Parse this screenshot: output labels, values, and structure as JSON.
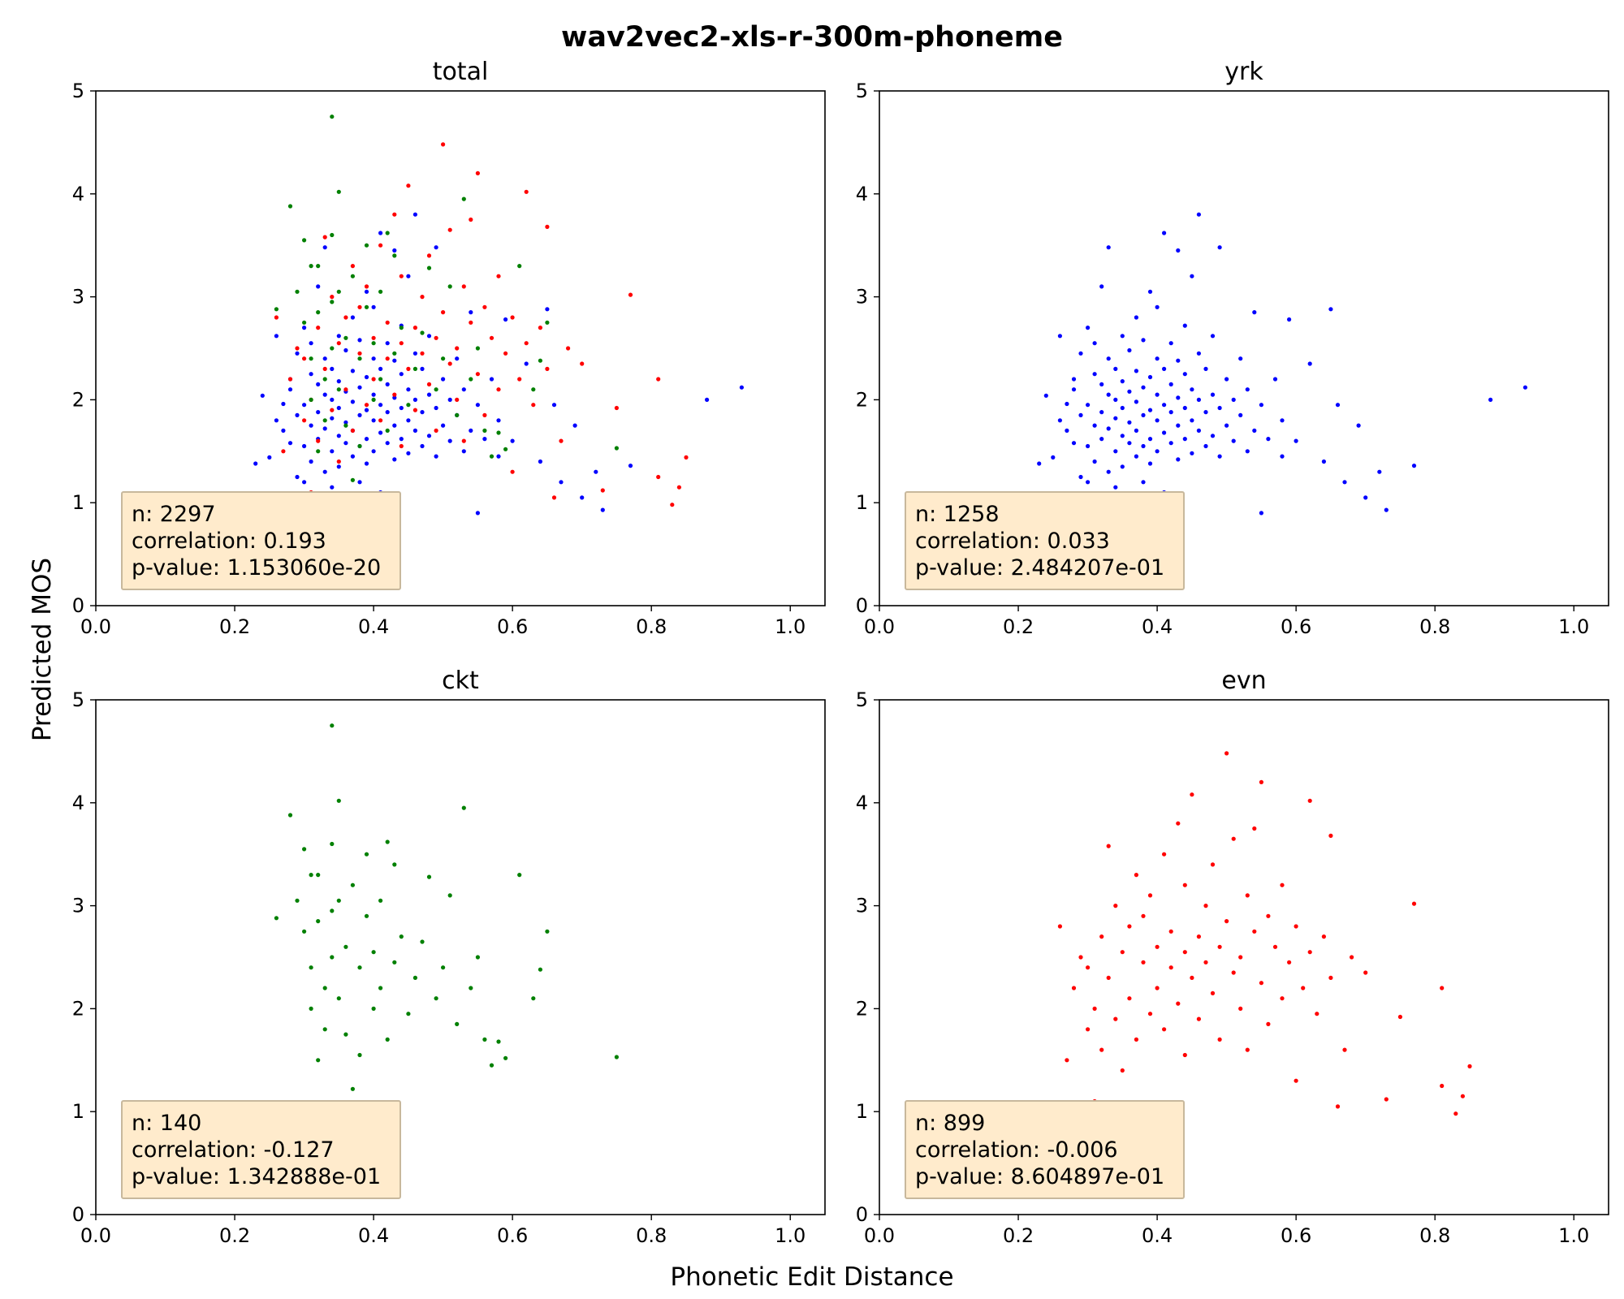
{
  "figure": {
    "title": "wav2vec2-xls-r-300m-phoneme",
    "xlabel": "Phonetic Edit Distance",
    "ylabel": "Predicted MOS"
  },
  "colors": {
    "yrk": "#0000ff",
    "ckt": "#008000",
    "evn": "#ff0000",
    "stat_box": "#ffebcc"
  },
  "chart_data": [
    {
      "type": "scatter",
      "title": "total",
      "xlim": [
        0.0,
        1.05
      ],
      "ylim": [
        0,
        5
      ],
      "xticks": [
        "0.0",
        "0.2",
        "0.4",
        "0.6",
        "0.8",
        "1.0"
      ],
      "yticks": [
        "0",
        "1",
        "2",
        "3",
        "4",
        "5"
      ],
      "stats": {
        "n": "n: 2297",
        "correlation": "correlation: 0.193",
        "pvalue": "p-value: 1.153060e-20"
      },
      "series_from": [
        "yrk",
        "evn",
        "ckt"
      ]
    },
    {
      "type": "scatter",
      "title": "yrk",
      "xlim": [
        0.0,
        1.05
      ],
      "ylim": [
        0,
        5
      ],
      "xticks": [
        "0.0",
        "0.2",
        "0.4",
        "0.6",
        "0.8",
        "1.0"
      ],
      "yticks": [
        "0",
        "1",
        "2",
        "3",
        "4",
        "5"
      ],
      "stats": {
        "n": "n: 1258",
        "correlation": "correlation: 0.033",
        "pvalue": "p-value: 2.484207e-01"
      },
      "series_from": [
        "yrk"
      ]
    },
    {
      "type": "scatter",
      "title": "ckt",
      "xlim": [
        0.0,
        1.05
      ],
      "ylim": [
        0,
        5
      ],
      "xticks": [
        "0.0",
        "0.2",
        "0.4",
        "0.6",
        "0.8",
        "1.0"
      ],
      "yticks": [
        "0",
        "1",
        "2",
        "3",
        "4",
        "5"
      ],
      "stats": {
        "n": "n: 140",
        "correlation": "correlation: -0.127",
        "pvalue": "p-value: 1.342888e-01"
      },
      "series_from": [
        "ckt"
      ]
    },
    {
      "type": "scatter",
      "title": "evn",
      "xlim": [
        0.0,
        1.05
      ],
      "ylim": [
        0,
        5
      ],
      "xticks": [
        "0.0",
        "0.2",
        "0.4",
        "0.6",
        "0.8",
        "1.0"
      ],
      "yticks": [
        "0",
        "1",
        "2",
        "3",
        "4",
        "5"
      ],
      "stats": {
        "n": "n: 899",
        "correlation": "correlation: -0.006",
        "pvalue": "p-value: 8.604897e-01"
      },
      "series_from": [
        "evn"
      ]
    }
  ],
  "series": {
    "yrk": [
      [
        0.23,
        1.38
      ],
      [
        0.24,
        2.04
      ],
      [
        0.25,
        1.44
      ],
      [
        0.26,
        1.8
      ],
      [
        0.26,
        2.62
      ],
      [
        0.27,
        1.96
      ],
      [
        0.27,
        1.7
      ],
      [
        0.28,
        2.2
      ],
      [
        0.28,
        1.58
      ],
      [
        0.28,
        2.1
      ],
      [
        0.29,
        1.25
      ],
      [
        0.29,
        1.85
      ],
      [
        0.29,
        2.45
      ],
      [
        0.3,
        1.55
      ],
      [
        0.3,
        1.95
      ],
      [
        0.3,
        2.7
      ],
      [
        0.3,
        1.2
      ],
      [
        0.31,
        1.75
      ],
      [
        0.31,
        2.25
      ],
      [
        0.31,
        1.4
      ],
      [
        0.31,
        2.55
      ],
      [
        0.32,
        1.62
      ],
      [
        0.32,
        1.88
      ],
      [
        0.32,
        2.15
      ],
      [
        0.32,
        3.1
      ],
      [
        0.33,
        1.3
      ],
      [
        0.33,
        1.72
      ],
      [
        0.33,
        2.05
      ],
      [
        0.33,
        2.4
      ],
      [
        0.33,
        3.48
      ],
      [
        0.34,
        1.5
      ],
      [
        0.34,
        1.82
      ],
      [
        0.34,
        2.0
      ],
      [
        0.34,
        2.3
      ],
      [
        0.34,
        1.15
      ],
      [
        0.35,
        1.65
      ],
      [
        0.35,
        1.92
      ],
      [
        0.35,
        2.18
      ],
      [
        0.35,
        2.62
      ],
      [
        0.35,
        1.35
      ],
      [
        0.36,
        1.58
      ],
      [
        0.36,
        1.78
      ],
      [
        0.36,
        2.08
      ],
      [
        0.36,
        2.48
      ],
      [
        0.36,
        0.95
      ],
      [
        0.37,
        1.45
      ],
      [
        0.37,
        1.7
      ],
      [
        0.37,
        1.98
      ],
      [
        0.37,
        2.28
      ],
      [
        0.37,
        2.8
      ],
      [
        0.38,
        1.55
      ],
      [
        0.38,
        1.85
      ],
      [
        0.38,
        2.12
      ],
      [
        0.38,
        2.58
      ],
      [
        0.38,
        1.2
      ],
      [
        0.39,
        1.62
      ],
      [
        0.39,
        1.9
      ],
      [
        0.39,
        2.22
      ],
      [
        0.39,
        3.05
      ],
      [
        0.39,
        1.38
      ],
      [
        0.4,
        1.5
      ],
      [
        0.4,
        1.8
      ],
      [
        0.4,
        2.05
      ],
      [
        0.4,
        2.4
      ],
      [
        0.4,
        2.9
      ],
      [
        0.41,
        1.68
      ],
      [
        0.41,
        1.95
      ],
      [
        0.41,
        2.3
      ],
      [
        0.41,
        1.1
      ],
      [
        0.41,
        3.62
      ],
      [
        0.42,
        1.58
      ],
      [
        0.42,
        1.88
      ],
      [
        0.42,
        2.15
      ],
      [
        0.42,
        2.55
      ],
      [
        0.43,
        1.42
      ],
      [
        0.43,
        1.75
      ],
      [
        0.43,
        2.02
      ],
      [
        0.43,
        2.38
      ],
      [
        0.43,
        3.45
      ],
      [
        0.44,
        1.62
      ],
      [
        0.44,
        1.92
      ],
      [
        0.44,
        2.25
      ],
      [
        0.44,
        2.72
      ],
      [
        0.45,
        1.48
      ],
      [
        0.45,
        1.8
      ],
      [
        0.45,
        2.1
      ],
      [
        0.45,
        3.2
      ],
      [
        0.46,
        1.7
      ],
      [
        0.46,
        2.0
      ],
      [
        0.46,
        2.45
      ],
      [
        0.46,
        3.8
      ],
      [
        0.47,
        1.55
      ],
      [
        0.47,
        1.88
      ],
      [
        0.47,
        2.3
      ],
      [
        0.48,
        1.65
      ],
      [
        0.48,
        2.05
      ],
      [
        0.48,
        2.62
      ],
      [
        0.49,
        1.45
      ],
      [
        0.49,
        1.92
      ],
      [
        0.49,
        3.48
      ],
      [
        0.5,
        1.75
      ],
      [
        0.5,
        2.2
      ],
      [
        0.51,
        1.6
      ],
      [
        0.51,
        2.0
      ],
      [
        0.52,
        1.85
      ],
      [
        0.52,
        2.4
      ],
      [
        0.53,
        1.5
      ],
      [
        0.53,
        2.1
      ],
      [
        0.54,
        1.7
      ],
      [
        0.54,
        2.85
      ],
      [
        0.55,
        0.9
      ],
      [
        0.55,
        1.95
      ],
      [
        0.56,
        1.62
      ],
      [
        0.57,
        2.2
      ],
      [
        0.58,
        1.45
      ],
      [
        0.58,
        1.8
      ],
      [
        0.59,
        2.78
      ],
      [
        0.6,
        1.6
      ],
      [
        0.62,
        2.35
      ],
      [
        0.64,
        1.4
      ],
      [
        0.65,
        2.88
      ],
      [
        0.66,
        1.95
      ],
      [
        0.67,
        1.2
      ],
      [
        0.69,
        1.75
      ],
      [
        0.7,
        1.05
      ],
      [
        0.72,
        1.3
      ],
      [
        0.73,
        0.93
      ],
      [
        0.77,
        1.36
      ],
      [
        0.88,
        2.0
      ],
      [
        0.93,
        2.12
      ]
    ],
    "ckt": [
      [
        0.26,
        2.88
      ],
      [
        0.28,
        3.88
      ],
      [
        0.29,
        3.05
      ],
      [
        0.3,
        3.55
      ],
      [
        0.3,
        2.75
      ],
      [
        0.3,
        0.9
      ],
      [
        0.31,
        3.3
      ],
      [
        0.31,
        2.4
      ],
      [
        0.31,
        2.0
      ],
      [
        0.32,
        1.5
      ],
      [
        0.32,
        2.85
      ],
      [
        0.32,
        3.3
      ],
      [
        0.33,
        2.2
      ],
      [
        0.33,
        1.8
      ],
      [
        0.34,
        4.75
      ],
      [
        0.34,
        3.6
      ],
      [
        0.34,
        2.5
      ],
      [
        0.34,
        2.95
      ],
      [
        0.35,
        3.05
      ],
      [
        0.35,
        2.1
      ],
      [
        0.35,
        4.02
      ],
      [
        0.36,
        2.6
      ],
      [
        0.36,
        1.75
      ],
      [
        0.37,
        1.22
      ],
      [
        0.37,
        3.2
      ],
      [
        0.38,
        2.4
      ],
      [
        0.38,
        1.55
      ],
      [
        0.39,
        2.9
      ],
      [
        0.39,
        3.5
      ],
      [
        0.4,
        2.55
      ],
      [
        0.4,
        2.0
      ],
      [
        0.41,
        3.05
      ],
      [
        0.41,
        2.2
      ],
      [
        0.42,
        3.62
      ],
      [
        0.42,
        1.7
      ],
      [
        0.43,
        2.45
      ],
      [
        0.43,
        3.4
      ],
      [
        0.44,
        2.7
      ],
      [
        0.45,
        1.95
      ],
      [
        0.46,
        2.3
      ],
      [
        0.47,
        2.65
      ],
      [
        0.48,
        3.28
      ],
      [
        0.49,
        2.1
      ],
      [
        0.5,
        2.4
      ],
      [
        0.51,
        3.1
      ],
      [
        0.52,
        1.85
      ],
      [
        0.53,
        3.95
      ],
      [
        0.54,
        2.2
      ],
      [
        0.55,
        2.5
      ],
      [
        0.56,
        1.7
      ],
      [
        0.57,
        1.45
      ],
      [
        0.58,
        1.68
      ],
      [
        0.59,
        1.52
      ],
      [
        0.61,
        3.3
      ],
      [
        0.63,
        2.1
      ],
      [
        0.64,
        2.38
      ],
      [
        0.65,
        2.75
      ],
      [
        0.75,
        1.53
      ]
    ],
    "evn": [
      [
        0.26,
        2.8
      ],
      [
        0.27,
        1.5
      ],
      [
        0.28,
        2.2
      ],
      [
        0.29,
        2.5
      ],
      [
        0.3,
        1.8
      ],
      [
        0.3,
        2.4
      ],
      [
        0.31,
        1.1
      ],
      [
        0.31,
        2.0
      ],
      [
        0.32,
        2.7
      ],
      [
        0.32,
        1.6
      ],
      [
        0.33,
        3.58
      ],
      [
        0.33,
        2.3
      ],
      [
        0.34,
        3.0
      ],
      [
        0.34,
        1.9
      ],
      [
        0.35,
        2.55
      ],
      [
        0.35,
        1.4
      ],
      [
        0.36,
        2.8
      ],
      [
        0.36,
        2.1
      ],
      [
        0.37,
        3.3
      ],
      [
        0.37,
        1.7
      ],
      [
        0.38,
        2.45
      ],
      [
        0.38,
        2.9
      ],
      [
        0.39,
        1.95
      ],
      [
        0.39,
        3.1
      ],
      [
        0.39,
        0.98
      ],
      [
        0.4,
        2.6
      ],
      [
        0.4,
        2.2
      ],
      [
        0.41,
        3.5
      ],
      [
        0.41,
        1.8
      ],
      [
        0.42,
        2.4
      ],
      [
        0.42,
        2.75
      ],
      [
        0.43,
        3.8
      ],
      [
        0.43,
        2.05
      ],
      [
        0.44,
        2.55
      ],
      [
        0.44,
        3.2
      ],
      [
        0.44,
        1.55
      ],
      [
        0.45,
        4.08
      ],
      [
        0.45,
        2.3
      ],
      [
        0.46,
        2.7
      ],
      [
        0.46,
        1.9
      ],
      [
        0.47,
        3.0
      ],
      [
        0.47,
        2.45
      ],
      [
        0.48,
        3.4
      ],
      [
        0.48,
        2.15
      ],
      [
        0.49,
        2.6
      ],
      [
        0.49,
        1.7
      ],
      [
        0.5,
        4.48
      ],
      [
        0.5,
        2.85
      ],
      [
        0.51,
        2.35
      ],
      [
        0.51,
        3.65
      ],
      [
        0.52,
        2.0
      ],
      [
        0.52,
        2.5
      ],
      [
        0.53,
        3.1
      ],
      [
        0.53,
        1.6
      ],
      [
        0.54,
        2.75
      ],
      [
        0.54,
        3.75
      ],
      [
        0.55,
        4.2
      ],
      [
        0.55,
        2.25
      ],
      [
        0.56,
        2.9
      ],
      [
        0.56,
        1.85
      ],
      [
        0.57,
        2.6
      ],
      [
        0.58,
        3.2
      ],
      [
        0.58,
        2.1
      ],
      [
        0.59,
        2.45
      ],
      [
        0.6,
        2.8
      ],
      [
        0.6,
        1.3
      ],
      [
        0.61,
        2.2
      ],
      [
        0.62,
        4.02
      ],
      [
        0.62,
        2.55
      ],
      [
        0.63,
        1.95
      ],
      [
        0.64,
        2.7
      ],
      [
        0.65,
        2.3
      ],
      [
        0.65,
        3.68
      ],
      [
        0.66,
        1.05
      ],
      [
        0.67,
        1.6
      ],
      [
        0.68,
        2.5
      ],
      [
        0.7,
        2.35
      ],
      [
        0.73,
        1.12
      ],
      [
        0.75,
        1.92
      ],
      [
        0.77,
        3.02
      ],
      [
        0.81,
        1.25
      ],
      [
        0.81,
        2.2
      ],
      [
        0.83,
        0.98
      ],
      [
        0.84,
        1.15
      ],
      [
        0.85,
        1.44
      ]
    ]
  }
}
